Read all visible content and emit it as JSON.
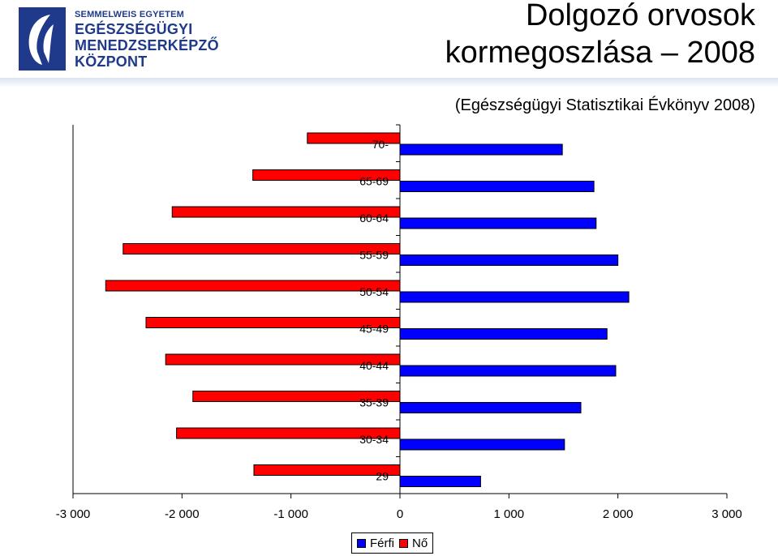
{
  "logo": {
    "line1": "SEMMELWEIS EGYETEM",
    "line2": "EGÉSZSÉGÜGYI",
    "line3": "MENEDZSERKÉPZŐ",
    "line4": "KÖZPONT",
    "color": "#1f3a8a"
  },
  "header": {
    "title_line1": "Dolgozó orvosok",
    "title_line2": "kormegoszlása – 2008",
    "subtitle": "(Egészségügyi Statisztikai Évkönyv 2008)"
  },
  "legend": {
    "entries": [
      {
        "label": "Férfi",
        "color": "#0000ff"
      },
      {
        "label": "Nő",
        "color": "#ff0000"
      }
    ]
  },
  "chart_data": {
    "type": "bar",
    "orientation": "horizontal",
    "categories": [
      "70-",
      "65-69",
      "60-64",
      "55-59",
      "50-54",
      "45-49",
      "40-44",
      "35-39",
      "30-34",
      "29"
    ],
    "series": [
      {
        "name": "Férfi",
        "color": "#0000ff",
        "values": [
          1490,
          1780,
          1800,
          2000,
          2100,
          1900,
          1980,
          1660,
          1510,
          740
        ]
      },
      {
        "name": "Nő",
        "color": "#ff0000",
        "values": [
          -850,
          -1350,
          -2090,
          -2540,
          -2700,
          -2330,
          -2150,
          -1900,
          -2050,
          -1340
        ]
      }
    ],
    "xlim": [
      -3000,
      3000
    ],
    "xticks": [
      -3000,
      -2000,
      -1000,
      0,
      1000,
      2000,
      3000
    ],
    "xtick_labels": [
      "-3 000",
      "-2 000",
      "-1 000",
      "0",
      "1 000",
      "2 000",
      "3 000"
    ],
    "grid": false,
    "legend_position": "bottom"
  }
}
